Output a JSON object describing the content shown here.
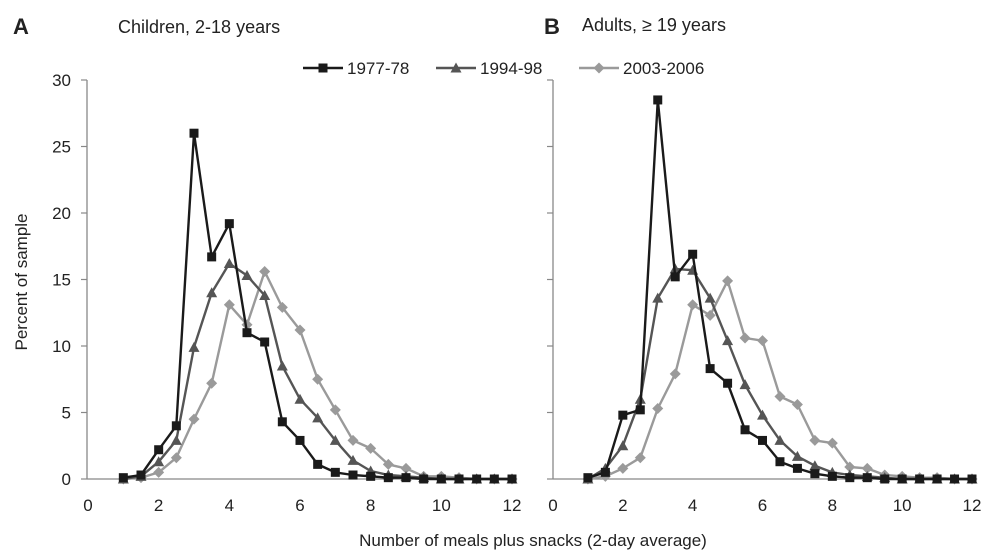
{
  "chart_data": {
    "type": "line",
    "xlabel": "Number of meals plus snacks (2-day average)",
    "ylabel": "Percent of sample",
    "xlim": [
      0,
      12
    ],
    "ylim": [
      0,
      30
    ],
    "x_ticks": [
      "0",
      "2",
      "4",
      "6",
      "8",
      "10",
      "12"
    ],
    "y_ticks": [
      "0",
      "5",
      "10",
      "15",
      "20",
      "25",
      "30"
    ],
    "grid": false,
    "legend": {
      "placement": "top-center",
      "entries": [
        "1977-78",
        "1994-98",
        "2003-2006"
      ]
    },
    "series_styles": [
      {
        "name": "1977-78",
        "color": "#1a1a1a",
        "marker": "square"
      },
      {
        "name": "1994-98",
        "color": "#555555",
        "marker": "triangle"
      },
      {
        "name": "2003-2006",
        "color": "#9a9a9a",
        "marker": "diamond"
      }
    ],
    "panels": [
      {
        "letter": "A",
        "title": "Children, 2-18 years",
        "series": [
          {
            "name": "1977-78",
            "x": [
              1,
              1.5,
              2,
              2.5,
              3,
              3.5,
              4,
              4.5,
              5,
              5.5,
              6,
              6.5,
              7,
              7.5,
              8,
              8.5,
              9,
              9.5,
              10,
              10.5,
              11,
              11.5,
              12
            ],
            "values": [
              0.1,
              0.3,
              2.2,
              4.0,
              26.0,
              16.7,
              19.2,
              11.0,
              10.3,
              4.3,
              2.9,
              1.1,
              0.5,
              0.3,
              0.2,
              0.1,
              0.1,
              0.0,
              0.0,
              0.0,
              0.0,
              0.0,
              0.0
            ]
          },
          {
            "name": "1994-98",
            "x": [
              1,
              1.5,
              2,
              2.5,
              3,
              3.5,
              4,
              4.5,
              5,
              5.5,
              6,
              6.5,
              7,
              7.5,
              8,
              8.5,
              9,
              9.5,
              10,
              10.5,
              11,
              11.5,
              12
            ],
            "values": [
              0.0,
              0.2,
              1.3,
              2.9,
              9.9,
              14.0,
              16.2,
              15.3,
              13.8,
              8.5,
              6.0,
              4.6,
              2.9,
              1.4,
              0.6,
              0.3,
              0.2,
              0.1,
              0.0,
              0.0,
              0.0,
              0.0,
              0.0
            ]
          },
          {
            "name": "2003-2006",
            "x": [
              1,
              1.5,
              2,
              2.5,
              3,
              3.5,
              4,
              4.5,
              5,
              5.5,
              6,
              6.5,
              7,
              7.5,
              8,
              8.5,
              9,
              9.5,
              10,
              10.5,
              11,
              11.5,
              12
            ],
            "values": [
              0.0,
              0.1,
              0.5,
              1.6,
              4.5,
              7.2,
              13.1,
              11.6,
              15.6,
              12.9,
              11.2,
              7.5,
              5.2,
              2.9,
              2.3,
              1.1,
              0.8,
              0.2,
              0.2,
              0.1,
              0.0,
              0.0,
              0.0
            ]
          }
        ]
      },
      {
        "letter": "B",
        "title": "Adults, ≥ 19 years",
        "series": [
          {
            "name": "1977-78",
            "x": [
              1,
              1.5,
              2,
              2.5,
              3,
              3.5,
              4,
              4.5,
              5,
              5.5,
              6,
              6.5,
              7,
              7.5,
              8,
              8.5,
              9,
              9.5,
              10,
              10.5,
              11,
              11.5,
              12
            ],
            "values": [
              0.1,
              0.5,
              4.8,
              5.2,
              28.5,
              15.2,
              16.9,
              8.3,
              7.2,
              3.7,
              2.9,
              1.3,
              0.8,
              0.4,
              0.2,
              0.1,
              0.1,
              0.0,
              0.0,
              0.0,
              0.0,
              0.0,
              0.0
            ]
          },
          {
            "name": "1994-98",
            "x": [
              1,
              1.5,
              2,
              2.5,
              3,
              3.5,
              4,
              4.5,
              5,
              5.5,
              6,
              6.5,
              7,
              7.5,
              8,
              8.5,
              9,
              9.5,
              10,
              10.5,
              11,
              11.5,
              12
            ],
            "values": [
              0.0,
              0.8,
              2.5,
              6.0,
              13.6,
              15.8,
              15.7,
              13.6,
              10.4,
              7.1,
              4.8,
              2.9,
              1.7,
              1.0,
              0.5,
              0.3,
              0.2,
              0.1,
              0.0,
              0.0,
              0.0,
              0.0,
              0.0
            ]
          },
          {
            "name": "2003-2006",
            "x": [
              1,
              1.5,
              2,
              2.5,
              3,
              3.5,
              4,
              4.5,
              5,
              5.5,
              6,
              6.5,
              7,
              7.5,
              8,
              8.5,
              9,
              9.5,
              10,
              10.5,
              11,
              11.5,
              12
            ],
            "values": [
              0.0,
              0.2,
              0.8,
              1.6,
              5.3,
              7.9,
              13.1,
              12.3,
              14.9,
              10.6,
              10.4,
              6.2,
              5.6,
              2.9,
              2.7,
              0.9,
              0.8,
              0.3,
              0.2,
              0.1,
              0.1,
              0.0,
              0.0
            ]
          }
        ]
      }
    ]
  }
}
